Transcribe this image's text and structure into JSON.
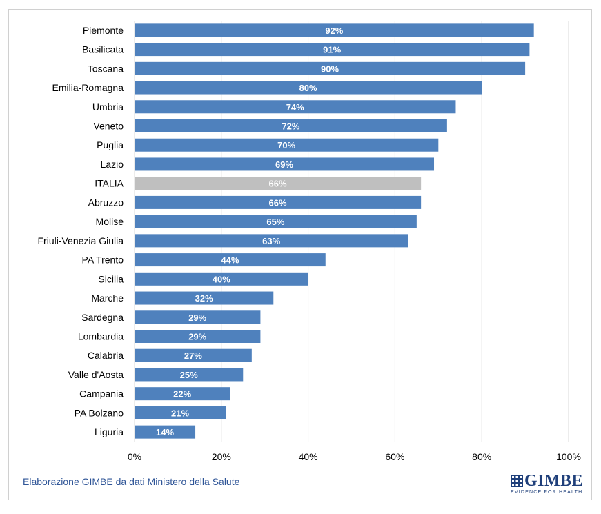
{
  "chart_data": {
    "type": "bar",
    "orientation": "horizontal",
    "categories": [
      "Piemonte",
      "Basilicata",
      "Toscana",
      "Emilia-Romagna",
      "Umbria",
      "Veneto",
      "Puglia",
      "Lazio",
      "ITALIA",
      "Abruzzo",
      "Molise",
      "Friuli-Venezia Giulia",
      "PA Trento",
      "Sicilia",
      "Marche",
      "Sardegna",
      "Lombardia",
      "Calabria",
      "Valle d'Aosta",
      "Campania",
      "PA Bolzano",
      "Liguria"
    ],
    "values": [
      92,
      91,
      90,
      80,
      74,
      72,
      70,
      69,
      66,
      66,
      65,
      63,
      44,
      40,
      32,
      29,
      29,
      27,
      25,
      22,
      21,
      14
    ],
    "data_labels": [
      "92%",
      "91%",
      "90%",
      "80%",
      "74%",
      "72%",
      "70%",
      "69%",
      "66%",
      "66%",
      "65%",
      "63%",
      "44%",
      "40%",
      "32%",
      "29%",
      "29%",
      "27%",
      "25%",
      "22%",
      "21%",
      "14%"
    ],
    "x_ticks": [
      "0%",
      "20%",
      "40%",
      "60%",
      "80%",
      "100%"
    ],
    "xlim": [
      0,
      100
    ],
    "grid": "vertical",
    "colors": {
      "bar": "#4f81bd",
      "highlight": "#bfbfbf",
      "grid": "#d9d9d9",
      "label": "#ffffff"
    },
    "highlight_category": "ITALIA"
  },
  "source_note": "Elaborazione GIMBE da dati Ministero della Salute",
  "logo": {
    "name": "GIMBE",
    "tagline": "EVIDENCE FOR HEALTH"
  }
}
